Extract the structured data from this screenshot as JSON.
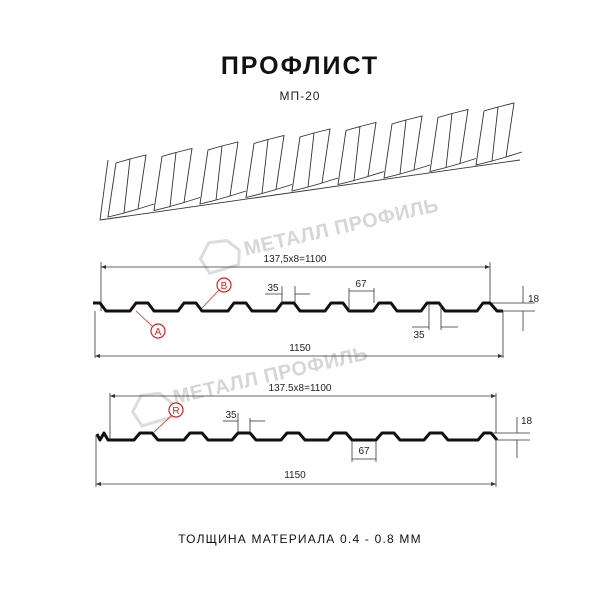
{
  "title": "ПРОФЛИСТ",
  "subtitle": "МП-20",
  "footer": "ТОЛЩИНА МАТЕРИАЛА 0.4 - 0.8 ММ",
  "watermark": "МЕТАЛЛ ПРОФИЛЬ",
  "profile_a": {
    "overall_pitch": "137,5x8=1100",
    "total_width": "1150",
    "top_width": "35",
    "bottom_width": "35",
    "gap": "67",
    "height": "18",
    "marker_a": "A",
    "marker_b": "B"
  },
  "profile_r": {
    "overall_pitch": "137.5x8=1100",
    "total_width": "1150",
    "top_width": "35",
    "gap": "67",
    "height": "18",
    "marker_r": "R"
  },
  "colors": {
    "profile": "#1a1a1a",
    "marker": "#e02020",
    "watermark": "#d6d6d6"
  }
}
